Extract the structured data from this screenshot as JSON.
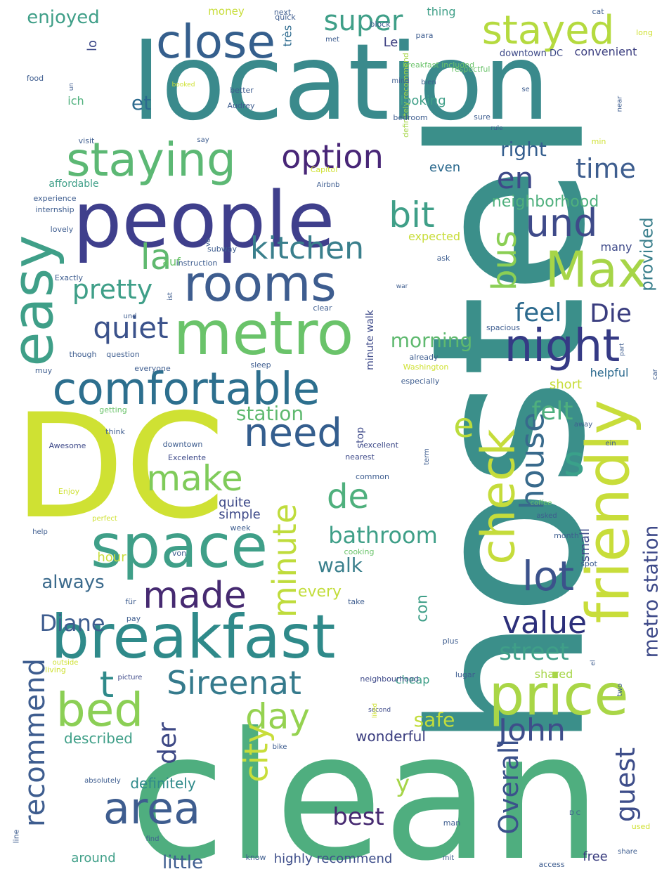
{
  "words": [
    {
      "text": "hostel",
      "color": "#3b8f8a"
    },
    {
      "text": "clean",
      "color": "#4fae7f"
    },
    {
      "text": "location",
      "color": "#3a8a8c"
    },
    {
      "text": "DC",
      "color": "#cfe133"
    },
    {
      "text": "people",
      "color": "#3f3f8c"
    },
    {
      "text": "breakfast",
      "color": "#2f8a8a"
    },
    {
      "text": "space",
      "color": "#3f9f88"
    },
    {
      "text": "metro",
      "color": "#6ac36a"
    },
    {
      "text": "comfortable",
      "color": "#2d6f8e"
    },
    {
      "text": "rooms",
      "color": "#3e5d8f"
    },
    {
      "text": "friendly",
      "color": "#c8dd3a"
    },
    {
      "text": "price",
      "color": "#a9d646"
    },
    {
      "text": "staying",
      "color": "#5cb874"
    },
    {
      "text": "close",
      "color": "#355f8d"
    },
    {
      "text": "stayed",
      "color": "#b5da3f"
    },
    {
      "text": "easy",
      "color": "#3f9f88"
    },
    {
      "text": "bed",
      "color": "#8bcf55"
    },
    {
      "text": "Max",
      "color": "#a6d548"
    },
    {
      "text": "night",
      "color": "#353a85"
    },
    {
      "text": "area",
      "color": "#3e5d8f"
    },
    {
      "text": "Sireenat",
      "color": "#357a8c"
    },
    {
      "text": "made",
      "color": "#462a71"
    },
    {
      "text": "need",
      "color": "#345e8e"
    },
    {
      "text": "check",
      "color": "#c5dc3b"
    },
    {
      "text": "house",
      "color": "#386a8c"
    },
    {
      "text": "minute",
      "color": "#bfdc3c"
    },
    {
      "text": "option",
      "color": "#482677"
    },
    {
      "text": "und",
      "color": "#3e4a89"
    },
    {
      "text": "make",
      "color": "#7fcb5a"
    },
    {
      "text": "lot",
      "color": "#3b528b"
    },
    {
      "text": "value",
      "color": "#2c2f7a"
    },
    {
      "text": "John",
      "color": "#3e4e8a"
    },
    {
      "text": "day",
      "color": "#95d250"
    },
    {
      "text": "super",
      "color": "#3f9f88"
    },
    {
      "text": "bit",
      "color": "#3f9f88"
    },
    {
      "text": "time",
      "color": "#3e5e8f"
    },
    {
      "text": "en",
      "color": "#3e4a89"
    },
    {
      "text": "kitchen",
      "color": "#3a7f8c"
    },
    {
      "text": "de",
      "color": "#4fb07d"
    },
    {
      "text": "s",
      "color": "#3aa18a"
    },
    {
      "text": "e",
      "color": "#bbdc3d"
    },
    {
      "text": "la",
      "color": "#5fb96f"
    },
    {
      "text": "quiet",
      "color": "#3b528b"
    },
    {
      "text": "pretty",
      "color": "#3f9f88"
    },
    {
      "text": "bus",
      "color": "#8bcf55"
    },
    {
      "text": "recommend",
      "color": "#3e5d8f"
    },
    {
      "text": "city",
      "color": "#c8dd3a"
    },
    {
      "text": "der",
      "color": "#3d4885"
    },
    {
      "text": "guest",
      "color": "#3e4e8a"
    },
    {
      "text": "Overall",
      "color": "#3b528b"
    },
    {
      "text": "metro station",
      "color": "#3e4a89"
    },
    {
      "text": "street",
      "color": "#3f9f88"
    },
    {
      "text": "bathroom",
      "color": "#3f9f88"
    },
    {
      "text": "Diane",
      "color": "#3e5d8f"
    },
    {
      "text": "best",
      "color": "#462a71"
    },
    {
      "text": "feel",
      "color": "#2c6a8e"
    },
    {
      "text": "Die",
      "color": "#3a3d7f"
    },
    {
      "text": "felt",
      "color": "#4eaf7e"
    },
    {
      "text": "t",
      "color": "#2f8a8a"
    },
    {
      "text": "y",
      "color": "#a6d548"
    },
    {
      "text": "little",
      "color": "#3e5d8f"
    },
    {
      "text": "always",
      "color": "#3b6a8c"
    },
    {
      "text": "walk",
      "color": "#3a7f8c"
    },
    {
      "text": "safe",
      "color": "#c2dd3b"
    },
    {
      "text": "morning",
      "color": "#5fb96f"
    },
    {
      "text": "station",
      "color": "#5fb96f"
    },
    {
      "text": "right",
      "color": "#345e8e"
    },
    {
      "text": "provided",
      "color": "#3a7f8c"
    },
    {
      "text": "enjoyed",
      "color": "#3f9f88"
    },
    {
      "text": "et",
      "color": "#2c6a8e"
    },
    {
      "text": "neighborhood",
      "color": "#4fb07d"
    },
    {
      "text": "con",
      "color": "#3f9f88"
    },
    {
      "text": "every",
      "color": "#c2dd3b"
    },
    {
      "text": "definitely",
      "color": "#2f8a8a"
    },
    {
      "text": "described",
      "color": "#3f9f88"
    },
    {
      "text": "wonderful",
      "color": "#3a3d7f"
    },
    {
      "text": "highly recommend",
      "color": "#3e4e8a"
    },
    {
      "text": "free",
      "color": "#3a3d7f"
    },
    {
      "text": "around",
      "color": "#3f9f88"
    },
    {
      "text": "hour",
      "color": "#c8dd3a"
    },
    {
      "text": "shared",
      "color": "#a6d548"
    },
    {
      "text": "short",
      "color": "#c8dd3a"
    },
    {
      "text": "cheap",
      "color": "#3f9f88"
    },
    {
      "text": "helpful",
      "color": "#2c6a8e"
    },
    {
      "text": "small",
      "color": "#3e4a89"
    },
    {
      "text": "quite",
      "color": "#3e4a89"
    },
    {
      "text": "simple",
      "color": "#3e4a89"
    },
    {
      "text": "looking",
      "color": "#3f9f88"
    },
    {
      "text": "even",
      "color": "#2c6a8e"
    },
    {
      "text": "affordable",
      "color": "#3f9f88"
    },
    {
      "text": "many",
      "color": "#3e4a89"
    },
    {
      "text": "expected",
      "color": "#c8dd3a"
    },
    {
      "text": "auf",
      "color": "#6ac36a"
    },
    {
      "text": "Le",
      "color": "#3a3d7f"
    },
    {
      "text": "très",
      "color": "#2c6a8e"
    },
    {
      "text": "lo",
      "color": "#3e4a89"
    },
    {
      "text": "ich",
      "color": "#4fb07d"
    },
    {
      "text": "convenient",
      "color": "#3a3d7f"
    },
    {
      "text": "money",
      "color": "#c8dd3a"
    },
    {
      "text": "thing",
      "color": "#3f9f88"
    },
    {
      "text": "stop",
      "color": "#3e4a89"
    },
    {
      "text": "minute walk",
      "color": "#3e4a89"
    },
    {
      "text": "internship",
      "color": "#3e5d8f"
    },
    {
      "text": "experience",
      "color": "#3e5d8f"
    },
    {
      "text": "Exactly",
      "color": "#3e5d8f"
    },
    {
      "text": "instruction",
      "color": "#3e5d8f"
    },
    {
      "text": "subway",
      "color": "#3e5d8f"
    },
    {
      "text": "question",
      "color": "#3e5d8f"
    },
    {
      "text": "though",
      "color": "#3e5d8f"
    },
    {
      "text": "sleep",
      "color": "#3e5d8f"
    },
    {
      "text": "Washington",
      "color": "#cfe133"
    },
    {
      "text": "especially",
      "color": "#3e5d8f"
    },
    {
      "text": "spacious",
      "color": "#3e5d8f"
    },
    {
      "text": "Awesome",
      "color": "#3e4a89"
    },
    {
      "text": "Excelente",
      "color": "#3e4a89"
    },
    {
      "text": "excellent",
      "color": "#3e4a89"
    },
    {
      "text": "nearest",
      "color": "#3e4a89"
    },
    {
      "text": "common",
      "color": "#3e5d8f"
    },
    {
      "text": "asked",
      "color": "#3e5d8f"
    },
    {
      "text": "coffee",
      "color": "#6ac36a"
    },
    {
      "text": "cooking",
      "color": "#6ac36a"
    },
    {
      "text": "breakfast included",
      "color": "#6ac36a"
    },
    {
      "text": "downtown DC",
      "color": "#3e4a89"
    },
    {
      "text": "definitely recommend",
      "color": "#a6d548"
    },
    {
      "text": "Capitol",
      "color": "#cfe133"
    },
    {
      "text": "Airbnb",
      "color": "#3e5d8f"
    },
    {
      "text": "neighbourhood",
      "color": "#3e4a89"
    },
    {
      "text": "lugar",
      "color": "#3e5d8f"
    },
    {
      "text": "second",
      "color": "#3e4a89"
    },
    {
      "text": "picture",
      "color": "#3e4a89"
    },
    {
      "text": "outside",
      "color": "#cfe133"
    },
    {
      "text": "living",
      "color": "#cfe133"
    },
    {
      "text": "line",
      "color": "#3e5d8f"
    },
    {
      "text": "respectful",
      "color": "#6ac36a"
    },
    {
      "text": "Audrey",
      "color": "#3e5d8f"
    },
    {
      "text": "bedroom",
      "color": "#3e5d8f"
    },
    {
      "text": "better",
      "color": "#3e5d8f"
    },
    {
      "text": "food",
      "color": "#3e5d8f"
    },
    {
      "text": "quick",
      "color": "#3e5d8f"
    },
    {
      "text": "block",
      "color": "#3e5d8f"
    },
    {
      "text": "next",
      "color": "#3e5d8f"
    },
    {
      "text": "met",
      "color": "#3e5d8f"
    },
    {
      "text": "para",
      "color": "#3e5d8f"
    },
    {
      "text": "cat",
      "color": "#3e5d8f"
    },
    {
      "text": "long",
      "color": "#cfe133"
    },
    {
      "text": "un",
      "color": "#3e5d8f"
    },
    {
      "text": "booked",
      "color": "#cfe133"
    },
    {
      "text": "mind",
      "color": "#3e5d8f"
    },
    {
      "text": "bien",
      "color": "#3e5d8f"
    },
    {
      "text": "se",
      "color": "#3e5d8f"
    },
    {
      "text": "sure",
      "color": "#3e5d8f"
    },
    {
      "text": "rule",
      "color": "#3e5d8f"
    },
    {
      "text": "near",
      "color": "#3e5d8f"
    },
    {
      "text": "min",
      "color": "#cfe133"
    },
    {
      "text": "visit",
      "color": "#3e5d8f"
    },
    {
      "text": "say",
      "color": "#3e5d8f"
    },
    {
      "text": "lovely",
      "color": "#3e5d8f"
    },
    {
      "text": "ve",
      "color": "#3e5d8f"
    },
    {
      "text": "ask",
      "color": "#3e5d8f"
    },
    {
      "text": "ist",
      "color": "#3e5d8f"
    },
    {
      "text": "war",
      "color": "#3e5d8f"
    },
    {
      "text": "und",
      "color": "#3e5d8f"
    },
    {
      "text": "clear",
      "color": "#3e5d8f"
    },
    {
      "text": "already",
      "color": "#3e5d8f"
    },
    {
      "text": "part",
      "color": "#3e5d8f"
    },
    {
      "text": "car",
      "color": "#3e5d8f"
    },
    {
      "text": "muy",
      "color": "#3e5d8f"
    },
    {
      "text": "everyone",
      "color": "#3e5d8f"
    },
    {
      "text": "getting",
      "color": "#6ac36a"
    },
    {
      "text": "think",
      "color": "#3e5d8f"
    },
    {
      "text": "downtown",
      "color": "#3e5d8f"
    },
    {
      "text": "away",
      "color": "#3e5d8f"
    },
    {
      "text": "ein",
      "color": "#3e5d8f"
    },
    {
      "text": "term",
      "color": "#3e5d8f"
    },
    {
      "text": "Enjoy",
      "color": "#cfe133"
    },
    {
      "text": "perfect",
      "color": "#cfe133"
    },
    {
      "text": "help",
      "color": "#3e5d8f"
    },
    {
      "text": "week",
      "color": "#3e5d8f"
    },
    {
      "text": "month",
      "color": "#3e5d8f"
    },
    {
      "text": "von",
      "color": "#3e5d8f"
    },
    {
      "text": "spot",
      "color": "#3e5d8f"
    },
    {
      "text": "für",
      "color": "#3e5d8f"
    },
    {
      "text": "pay",
      "color": "#3e5d8f"
    },
    {
      "text": "take",
      "color": "#3e5d8f"
    },
    {
      "text": "plus",
      "color": "#3e5d8f"
    },
    {
      "text": "el",
      "color": "#3e5d8f"
    },
    {
      "text": "two",
      "color": "#3e5d8f"
    },
    {
      "text": "liked",
      "color": "#cfe133"
    },
    {
      "text": "bike",
      "color": "#3e5d8f"
    },
    {
      "text": "absolutely",
      "color": "#3e5d8f"
    },
    {
      "text": "man",
      "color": "#3e5d8f"
    },
    {
      "text": "D C",
      "color": "#3e5d8f"
    },
    {
      "text": "used",
      "color": "#cfe133"
    },
    {
      "text": "share",
      "color": "#3e5d8f"
    },
    {
      "text": "find",
      "color": "#3e5d8f"
    },
    {
      "text": "know",
      "color": "#3e5d8f"
    },
    {
      "text": "mit",
      "color": "#3e5d8f"
    },
    {
      "text": "access",
      "color": "#3e5d8f"
    },
    {
      "text": "door",
      "color": "#cfe133"
    },
    {
      "text": "needed",
      "color": "#3e5d8f"
    }
  ]
}
